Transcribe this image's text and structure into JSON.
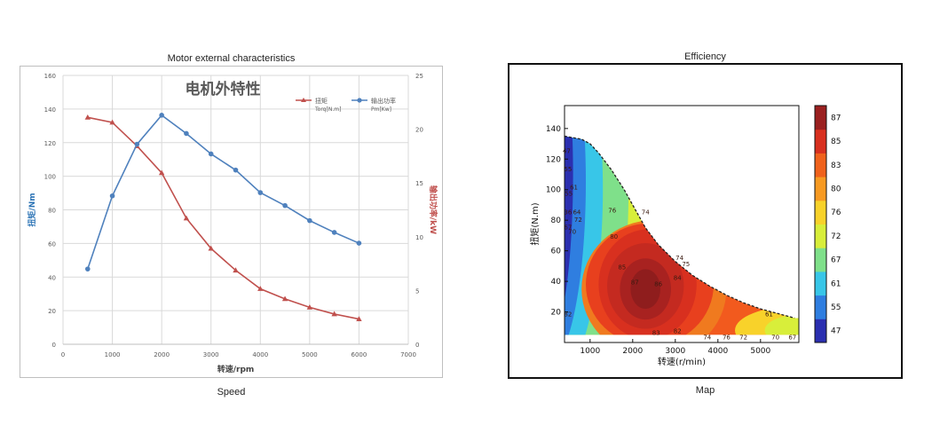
{
  "left_panel": {
    "title": "Motor external characteristics",
    "caption": "Speed"
  },
  "right_panel": {
    "title": "Efficiency",
    "caption": "Map"
  },
  "chart_data": [
    {
      "type": "line",
      "title": "电机外特性",
      "xlabel": "转速/rpm",
      "ylabel": "扭矩/Nm",
      "y2label": "输出功率/kW",
      "xlim": [
        0,
        7000
      ],
      "ylim": [
        0,
        160
      ],
      "y2lim": [
        0,
        25
      ],
      "xticks": [
        0,
        1000,
        2000,
        3000,
        4000,
        5000,
        6000,
        7000
      ],
      "yticks": [
        0,
        20,
        40,
        60,
        80,
        100,
        120,
        140,
        160
      ],
      "y2ticks": [
        0,
        5,
        10,
        15,
        20,
        25
      ],
      "grid": true,
      "legend": "top-right",
      "x": [
        500,
        1000,
        1500,
        2000,
        2500,
        3000,
        3500,
        4000,
        4500,
        5000,
        5500,
        6000
      ],
      "series": [
        {
          "name": "扭矩",
          "unit": "Torq[N.m]",
          "axis": "left",
          "color": "#c0504d",
          "marker": "triangle",
          "values": [
            135,
            132,
            118,
            102,
            75,
            57,
            44,
            33,
            27,
            22,
            18,
            15
          ]
        },
        {
          "name": "输出功率",
          "unit": "Pm[Kw]",
          "axis": "right",
          "color": "#4f81bd",
          "marker": "circle",
          "values": [
            7.0,
            13.8,
            18.6,
            21.3,
            19.6,
            17.7,
            16.2,
            14.1,
            12.9,
            11.5,
            10.4,
            9.4
          ]
        }
      ]
    },
    {
      "type": "heatmap",
      "subtype": "filled-contour",
      "xlabel": "转速(r/min)",
      "ylabel": "扭矩(N.m)",
      "xlim": [
        400,
        5900
      ],
      "ylim": [
        0,
        155
      ],
      "xticks": [
        1000,
        2000,
        3000,
        4000,
        5000
      ],
      "yticks": [
        20,
        40,
        60,
        80,
        100,
        120,
        140
      ],
      "colorbar_ticks": [
        47,
        55,
        61,
        67,
        72,
        76,
        80,
        83,
        85,
        87
      ],
      "colorbar_colors": [
        "#2b2fb0",
        "#2f7ee0",
        "#38c6e8",
        "#7fe08a",
        "#d8ee3a",
        "#f8d22a",
        "#f79a22",
        "#f0621c",
        "#d8301f",
        "#9b2020"
      ],
      "max_torque_curve": {
        "speed": [
          400,
          800,
          1000,
          1200,
          1500,
          1800,
          2000,
          2300,
          2600,
          3000,
          3400,
          3800,
          4200,
          4600,
          5000,
          5400,
          5800
        ],
        "torque": [
          135,
          133,
          130,
          124,
          113,
          100,
          90,
          75,
          64,
          53,
          44,
          37,
          31,
          26,
          22,
          19,
          16
        ]
      },
      "contour_labels": [
        {
          "text": "47",
          "speed": 450,
          "torque": 124
        },
        {
          "text": "55",
          "speed": 480,
          "torque": 112
        },
        {
          "text": "61",
          "speed": 620,
          "torque": 100
        },
        {
          "text": "55",
          "speed": 500,
          "torque": 96
        },
        {
          "text": "64",
          "speed": 690,
          "torque": 84
        },
        {
          "text": "36",
          "speed": 480,
          "torque": 84
        },
        {
          "text": "67",
          "speed": 480,
          "torque": 74
        },
        {
          "text": "70",
          "speed": 580,
          "torque": 71
        },
        {
          "text": "72",
          "speed": 720,
          "torque": 79
        },
        {
          "text": "76",
          "speed": 1520,
          "torque": 85
        },
        {
          "text": "74",
          "speed": 2300,
          "torque": 84
        },
        {
          "text": "80",
          "speed": 1560,
          "torque": 68
        },
        {
          "text": "74",
          "speed": 3100,
          "torque": 54
        },
        {
          "text": "75",
          "speed": 3250,
          "torque": 50
        },
        {
          "text": "85",
          "speed": 1750,
          "torque": 48
        },
        {
          "text": "87",
          "speed": 2050,
          "torque": 38
        },
        {
          "text": "86",
          "speed": 2600,
          "torque": 37
        },
        {
          "text": "84",
          "speed": 3050,
          "torque": 41
        },
        {
          "text": "82",
          "speed": 480,
          "torque": 17
        },
        {
          "text": "83",
          "speed": 2550,
          "torque": 5
        },
        {
          "text": "82",
          "speed": 3050,
          "torque": 6
        },
        {
          "text": "74",
          "speed": 3750,
          "torque": 2
        },
        {
          "text": "76",
          "speed": 4200,
          "torque": 2
        },
        {
          "text": "72",
          "speed": 4600,
          "torque": 2
        },
        {
          "text": "70",
          "speed": 5350,
          "torque": 2
        },
        {
          "text": "67",
          "speed": 5750,
          "torque": 2
        },
        {
          "text": "61",
          "speed": 5200,
          "torque": 17
        }
      ]
    }
  ]
}
